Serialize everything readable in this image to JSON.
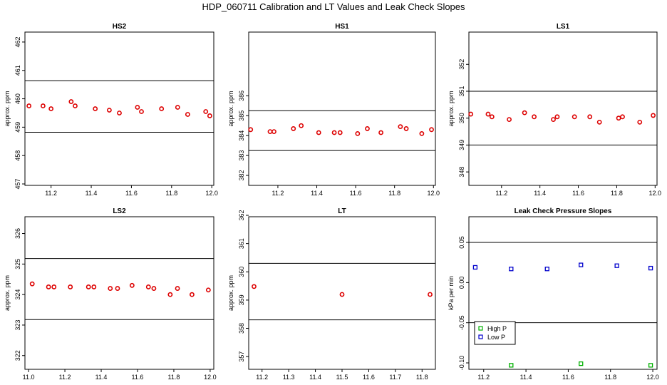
{
  "title": "HDP_060711  Calibration and LT Values and Leak Check Slopes",
  "colors": {
    "red": "#dd0000",
    "green": "#00b000",
    "blue": "#0000cc",
    "axis": "#000000"
  },
  "chart_data": [
    {
      "type": "scatter",
      "title": "HS2",
      "ylabel": "approx. ppm",
      "xlim": [
        11.07,
        12.01
      ],
      "ylim": [
        456.95,
        462.35
      ],
      "xticks": [
        11.2,
        11.4,
        11.6,
        11.8,
        12.0
      ],
      "xtick_labels": [
        "11.2",
        "11.4",
        "11.6",
        "11.8",
        "12.0"
      ],
      "yticks": [
        457,
        458,
        459,
        460,
        461,
        462
      ],
      "ytick_labels": [
        "457",
        "458",
        "459",
        "460",
        "461",
        "462"
      ],
      "hlines": [
        460.64,
        458.82
      ],
      "series": [
        {
          "name": "HS2",
          "color": "red",
          "marker": "circle",
          "x": [
            11.09,
            11.16,
            11.2,
            11.3,
            11.32,
            11.42,
            11.49,
            11.54,
            11.63,
            11.65,
            11.75,
            11.83,
            11.88,
            11.97,
            11.99
          ],
          "y": [
            459.75,
            459.75,
            459.65,
            459.9,
            459.75,
            459.65,
            459.6,
            459.5,
            459.7,
            459.55,
            459.65,
            459.7,
            459.45,
            459.55,
            459.4
          ]
        }
      ]
    },
    {
      "type": "scatter",
      "title": "HS1",
      "ylabel": "approx. ppm",
      "xlim": [
        11.05,
        12.01
      ],
      "ylim": [
        381.5,
        389.2
      ],
      "xticks": [
        11.2,
        11.4,
        11.6,
        11.8,
        12.0
      ],
      "xtick_labels": [
        "11.2",
        "11.4",
        "11.6",
        "11.8",
        "12.0"
      ],
      "yticks": [
        382,
        383,
        384,
        385,
        386
      ],
      "ytick_labels": [
        "382",
        "383",
        "384",
        "385",
        "386"
      ],
      "hlines": [
        385.25,
        383.25
      ],
      "series": [
        {
          "name": "HS1",
          "color": "red",
          "marker": "circle",
          "x": [
            11.06,
            11.16,
            11.18,
            11.28,
            11.32,
            11.41,
            11.49,
            11.52,
            11.61,
            11.66,
            11.73,
            11.83,
            11.86,
            11.94,
            11.99
          ],
          "y": [
            384.3,
            384.2,
            384.2,
            384.35,
            384.5,
            384.15,
            384.15,
            384.15,
            384.1,
            384.35,
            384.15,
            384.45,
            384.35,
            384.1,
            384.3
          ]
        }
      ]
    },
    {
      "type": "scatter",
      "title": "LS1",
      "ylabel": "approx. ppm",
      "xlim": [
        11.03,
        12.01
      ],
      "ylim": [
        347.5,
        353.2
      ],
      "xticks": [
        11.2,
        11.4,
        11.6,
        11.8,
        12.0
      ],
      "xtick_labels": [
        "11.2",
        "11.4",
        "11.6",
        "11.8",
        "12.0"
      ],
      "yticks": [
        348,
        349,
        350,
        351,
        352
      ],
      "ytick_labels": [
        "348",
        "349",
        "350",
        "351",
        "352"
      ],
      "hlines": [
        351.0,
        349.0
      ],
      "series": [
        {
          "name": "LS1",
          "color": "red",
          "marker": "circle",
          "x": [
            11.04,
            11.13,
            11.15,
            11.24,
            11.32,
            11.37,
            11.47,
            11.49,
            11.58,
            11.66,
            11.71,
            11.81,
            11.83,
            11.92,
            11.99
          ],
          "y": [
            350.15,
            350.15,
            350.05,
            349.95,
            350.2,
            350.05,
            349.95,
            350.05,
            350.05,
            350.05,
            349.85,
            350.0,
            350.05,
            349.85,
            350.1
          ]
        }
      ]
    },
    {
      "type": "scatter",
      "title": "LS2",
      "ylabel": "approx. ppm",
      "xlim": [
        10.98,
        12.02
      ],
      "ylim": [
        321.55,
        326.55
      ],
      "xticks": [
        11.0,
        11.2,
        11.4,
        11.6,
        11.8,
        12.0
      ],
      "xtick_labels": [
        "11.0",
        "11.2",
        "11.4",
        "11.6",
        "11.8",
        "12.0"
      ],
      "yticks": [
        322,
        323,
        324,
        325,
        326
      ],
      "ytick_labels": [
        "322",
        "323",
        "324",
        "325",
        "326"
      ],
      "hlines": [
        325.18,
        323.18
      ],
      "series": [
        {
          "name": "LS2",
          "color": "red",
          "marker": "circle",
          "x": [
            11.02,
            11.11,
            11.14,
            11.23,
            11.33,
            11.36,
            11.45,
            11.49,
            11.57,
            11.66,
            11.69,
            11.78,
            11.82,
            11.9,
            11.99
          ],
          "y": [
            324.35,
            324.25,
            324.25,
            324.25,
            324.25,
            324.25,
            324.2,
            324.2,
            324.3,
            324.25,
            324.2,
            324.0,
            324.2,
            324.0,
            324.15
          ]
        }
      ]
    },
    {
      "type": "scatter",
      "title": "LT",
      "ylabel": "approx. ppm",
      "xlim": [
        11.15,
        11.85
      ],
      "ylim": [
        356.55,
        361.95
      ],
      "xticks": [
        11.2,
        11.3,
        11.4,
        11.5,
        11.6,
        11.7,
        11.8
      ],
      "xtick_labels": [
        "11.2",
        "11.3",
        "11.4",
        "11.5",
        "11.6",
        "11.7",
        "11.8"
      ],
      "yticks": [
        357,
        358,
        359,
        360,
        361,
        362
      ],
      "ytick_labels": [
        "357",
        "358",
        "359",
        "360",
        "361",
        "362"
      ],
      "hlines": [
        360.3,
        358.3
      ],
      "series": [
        {
          "name": "LT",
          "color": "red",
          "marker": "circle",
          "x": [
            11.17,
            11.5,
            11.83
          ],
          "y": [
            359.48,
            359.2,
            359.2
          ]
        }
      ]
    },
    {
      "type": "scatter",
      "title": "Leak Check Pressure Slopes",
      "ylabel": "kPa per min",
      "xlim": [
        11.13,
        12.02
      ],
      "ylim": [
        -0.108,
        0.082
      ],
      "xticks": [
        11.2,
        11.4,
        11.6,
        11.8,
        12.0
      ],
      "xtick_labels": [
        "11.2",
        "11.4",
        "11.6",
        "11.8",
        "12.0"
      ],
      "yticks": [
        -0.1,
        -0.05,
        0.0,
        0.05
      ],
      "ytick_labels": [
        "-0.10",
        "-0.05",
        "0.00",
        "0.05"
      ],
      "hlines": [
        0.05,
        -0.05
      ],
      "legend": {
        "position": "bottom-left",
        "entries": [
          "High P",
          "Low P"
        ]
      },
      "series": [
        {
          "name": "High P",
          "color": "green",
          "marker": "square",
          "x": [
            11.33,
            11.66,
            11.99
          ],
          "y": [
            -0.103,
            -0.101,
            -0.103
          ]
        },
        {
          "name": "Low P",
          "color": "blue",
          "marker": "square",
          "x": [
            11.16,
            11.33,
            11.5,
            11.66,
            11.83,
            11.99
          ],
          "y": [
            0.019,
            0.017,
            0.017,
            0.022,
            0.021,
            0.018
          ]
        }
      ]
    }
  ]
}
